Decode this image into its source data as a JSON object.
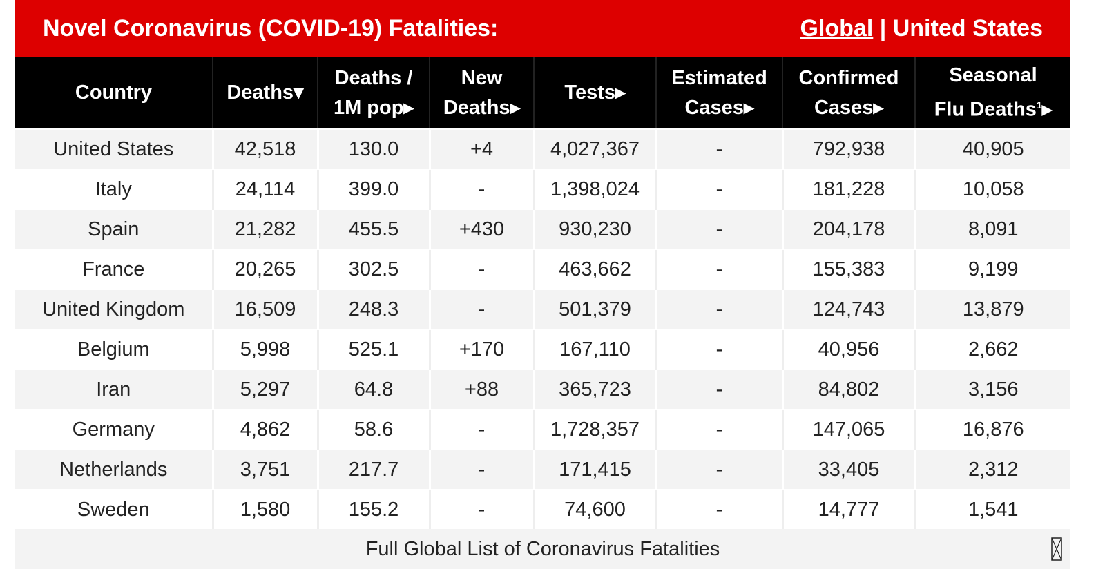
{
  "header": {
    "title": "Novel Coronavirus (COVID-19) Fatalities:",
    "link_global": "Global",
    "separator": "|",
    "link_us": "United States"
  },
  "columns": [
    {
      "line1": "Country",
      "line2": ""
    },
    {
      "line1": "Deaths▾",
      "line2": ""
    },
    {
      "line1": "Deaths /",
      "line2": "1M pop▸"
    },
    {
      "line1": "New",
      "line2": "Deaths▸"
    },
    {
      "line1": "Tests▸",
      "line2": ""
    },
    {
      "line1": "Estimated",
      "line2": "Cases▸"
    },
    {
      "line1": "Confirmed",
      "line2": "Cases▸"
    },
    {
      "line1": "Seasonal",
      "line2": "Flu Deaths",
      "sup": "1",
      "arrow": "▸"
    }
  ],
  "rows": [
    [
      "United States",
      "42,518",
      "130.0",
      "+4",
      "4,027,367",
      "-",
      "792,938",
      "40,905"
    ],
    [
      "Italy",
      "24,114",
      "399.0",
      "-",
      "1,398,024",
      "-",
      "181,228",
      "10,058"
    ],
    [
      "Spain",
      "21,282",
      "455.5",
      "+430",
      "930,230",
      "-",
      "204,178",
      "8,091"
    ],
    [
      "France",
      "20,265",
      "302.5",
      "-",
      "463,662",
      "-",
      "155,383",
      "9,199"
    ],
    [
      "United Kingdom",
      "16,509",
      "248.3",
      "-",
      "501,379",
      "-",
      "124,743",
      "13,879"
    ],
    [
      "Belgium",
      "5,998",
      "525.1",
      "+170",
      "167,110",
      "-",
      "40,956",
      "2,662"
    ],
    [
      "Iran",
      "5,297",
      "64.8",
      "+88",
      "365,723",
      "-",
      "84,802",
      "3,156"
    ],
    [
      "Germany",
      "4,862",
      "58.6",
      "-",
      "1,728,357",
      "-",
      "147,065",
      "16,876"
    ],
    [
      "Netherlands",
      "3,751",
      "217.7",
      "-",
      "171,415",
      "-",
      "33,405",
      "2,312"
    ],
    [
      "Sweden",
      "1,580",
      "155.2",
      "-",
      "74,600",
      "-",
      "14,777",
      "1,541"
    ]
  ],
  "footer": {
    "link": "Full Global List of Coronavirus Fatalities",
    "icon": "missing-glyph-icon"
  },
  "colors": {
    "brand": "#dd0000",
    "header_bg": "#000000",
    "stripe": "#f3f3f3"
  }
}
